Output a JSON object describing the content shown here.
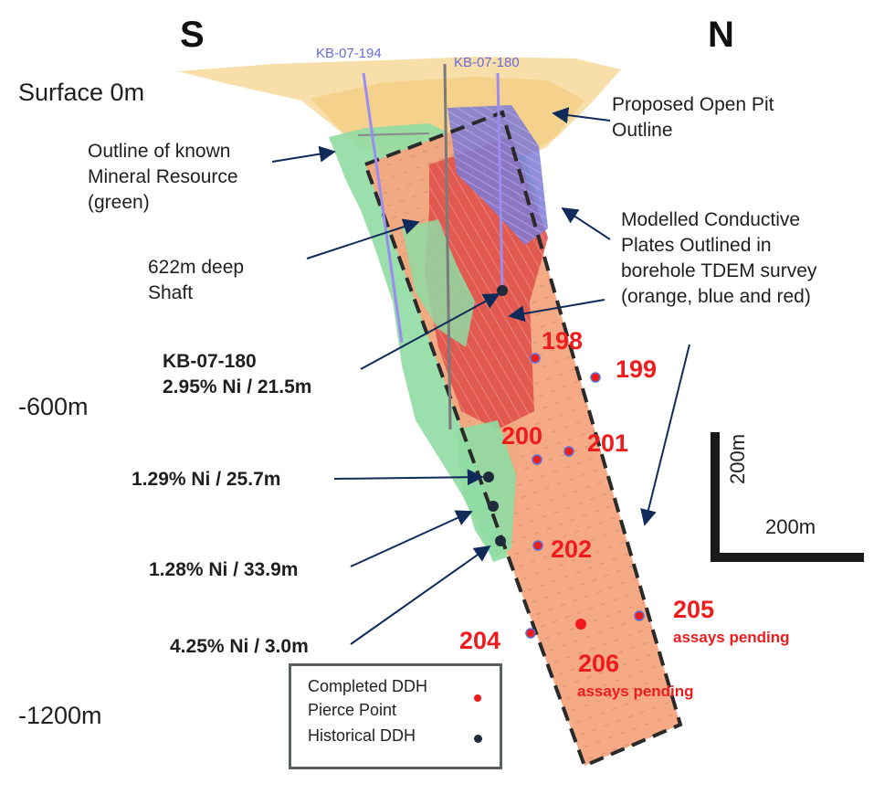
{
  "directions": {
    "south": "S",
    "north": "N"
  },
  "depths": {
    "surface": "Surface 0m",
    "mid": "-600m",
    "deep": "-1200m"
  },
  "collars": {
    "left": "KB-07-194",
    "right": "KB-07-180"
  },
  "annotations": {
    "open_pit": "Proposed Open Pit Outline",
    "resource": "Outline of known Mineral Resource (green)",
    "shaft": "622m deep Shaft",
    "plates": "Modelled Conductive Plates Outlined in borehole TDEM survey (orange, blue and red)"
  },
  "intercepts": {
    "kb180_name": "KB-07-180",
    "kb180_value": "2.95% Ni / 21.5m",
    "i1": "1.29% Ni / 25.7m",
    "i2": "1.28% Ni / 33.9m",
    "i3": "4.25% Ni / 3.0m"
  },
  "holes": {
    "h198": "198",
    "h199": "199",
    "h200": "200",
    "h201": "201",
    "h202": "202",
    "h204": "204",
    "h205": "205",
    "h206": "206",
    "pending": "assays pending"
  },
  "scale": {
    "vertical": "200m",
    "horizontal": "200m"
  },
  "legend": {
    "completed": "Completed DDH",
    "pierce": "Pierce Point",
    "historical": "Historical DDH"
  },
  "colors": {
    "target_zone": "#f4a57e",
    "resource_green": "#8fdca3",
    "conductor_red": "#df4f48",
    "conductor_blue": "#7b7bd6",
    "pit_yellow": "#f7d89a",
    "pierce_red": "#ee1c1c",
    "historical_dot": "#1f2a3a"
  }
}
